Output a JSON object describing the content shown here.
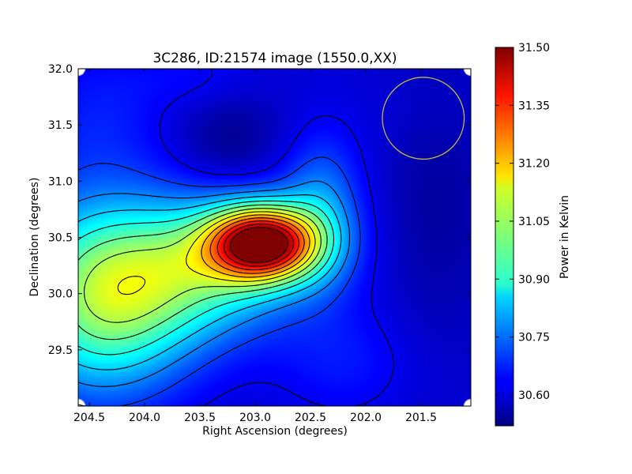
{
  "chart_data": {
    "type": "heatmap",
    "title": "3C286, ID:21574 image (1550.0,XX)",
    "xlabel": "Right Ascension (degrees)",
    "ylabel": "Declination (degrees)",
    "xlim": [
      204.6,
      201.05
    ],
    "ylim": [
      29.0,
      32.0
    ],
    "x_inverted": true,
    "x_ticks": [
      "204.5",
      "204.0",
      "203.5",
      "203.0",
      "202.5",
      "202.0",
      "201.5"
    ],
    "y_ticks": [
      "29.5",
      "30.0",
      "30.5",
      "31.0",
      "31.5",
      "32.0"
    ],
    "colorbar": {
      "label": "Power in Kelvin",
      "min": 30.52,
      "max": 31.5,
      "ticks": [
        "30.60",
        "30.75",
        "30.90",
        "31.05",
        "31.20",
        "31.35",
        "31.50"
      ],
      "colormap": "jet"
    },
    "features": [
      {
        "kind": "peak",
        "ra": 202.93,
        "dec": 30.45,
        "value": 31.48
      },
      {
        "kind": "minimum",
        "ra": 203.25,
        "dec": 31.35,
        "value": 30.55
      },
      {
        "kind": "minimum",
        "ra": 201.4,
        "dec": 30.8,
        "value": 30.56
      }
    ],
    "overlay_circle": {
      "ra": 201.48,
      "dec": 31.56,
      "radius_deg": 0.37,
      "color": "#c8b63c"
    },
    "contour_color": "#000000",
    "grid": false
  }
}
